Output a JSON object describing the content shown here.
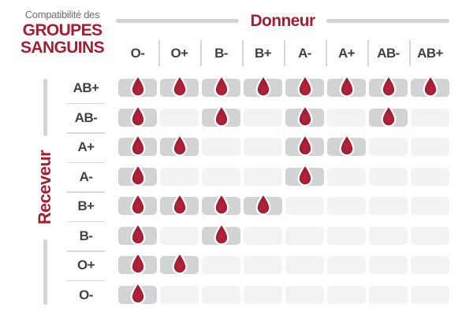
{
  "title": {
    "prefix": "Compatibilité des",
    "line1": "GROUPES",
    "line2": "SANGUINS"
  },
  "chart_data": {
    "type": "heatmap",
    "title": "Compatibilité des GROUPES SANGUINS",
    "x_label": "Donneur",
    "y_label": "Receveur",
    "columns": [
      "O-",
      "O+",
      "B-",
      "B+",
      "A-",
      "A+",
      "AB-",
      "AB+"
    ],
    "rows": [
      "AB+",
      "AB-",
      "A+",
      "A-",
      "B+",
      "B-",
      "O+",
      "O-"
    ],
    "values": [
      [
        1,
        1,
        1,
        1,
        1,
        1,
        1,
        1
      ],
      [
        1,
        0,
        1,
        0,
        1,
        0,
        1,
        0
      ],
      [
        1,
        1,
        0,
        0,
        1,
        1,
        0,
        0
      ],
      [
        1,
        0,
        0,
        0,
        1,
        0,
        0,
        0
      ],
      [
        1,
        1,
        1,
        1,
        0,
        0,
        0,
        0
      ],
      [
        1,
        0,
        1,
        0,
        0,
        0,
        0,
        0
      ],
      [
        1,
        1,
        0,
        0,
        0,
        0,
        0,
        0
      ],
      [
        1,
        0,
        0,
        0,
        0,
        0,
        0,
        0
      ]
    ],
    "true_marker_icon": "blood-drop-icon",
    "legend_position": "none",
    "grid": false
  },
  "colors": {
    "accent_red": "#A31F34",
    "drop_red_center": "#B5243E",
    "drop_red_edge": "#8E172B",
    "title_gray": "#6D6E71",
    "label_dark_gray": "#414042",
    "cell_filled_gray": "#D1D3D4",
    "cell_empty_gray": "#F2F3F3",
    "separator_gray": "#D8D9DA",
    "background": "#FFFFFF"
  }
}
